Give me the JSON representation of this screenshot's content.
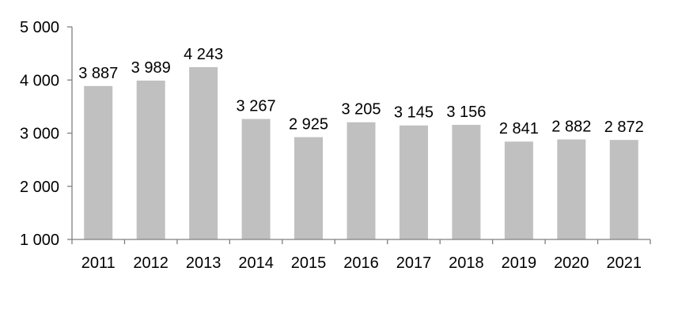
{
  "chart_data": {
    "type": "bar",
    "title": "",
    "xlabel": "",
    "ylabel": "",
    "categories": [
      "2011",
      "2012",
      "2013",
      "2014",
      "2015",
      "2016",
      "2017",
      "2018",
      "2019",
      "2020",
      "2021"
    ],
    "values": [
      3887,
      3989,
      4243,
      3267,
      2925,
      3205,
      3145,
      3156,
      2841,
      2882,
      2872
    ],
    "value_labels": [
      "3 887",
      "3 989",
      "4 243",
      "3 267",
      "2 925",
      "3 205",
      "3 145",
      "3 156",
      "2 841",
      "2 882",
      "2 872"
    ],
    "ylim": [
      1000,
      5000
    ],
    "yticks": [
      1000,
      2000,
      3000,
      4000,
      5000
    ],
    "ytick_labels": [
      "1 000",
      "2 000",
      "3 000",
      "4 000",
      "5 000"
    ],
    "grid": false,
    "legend": "none",
    "bar_color": "#c0c0c0",
    "axis_color": "#7f7f7f"
  }
}
